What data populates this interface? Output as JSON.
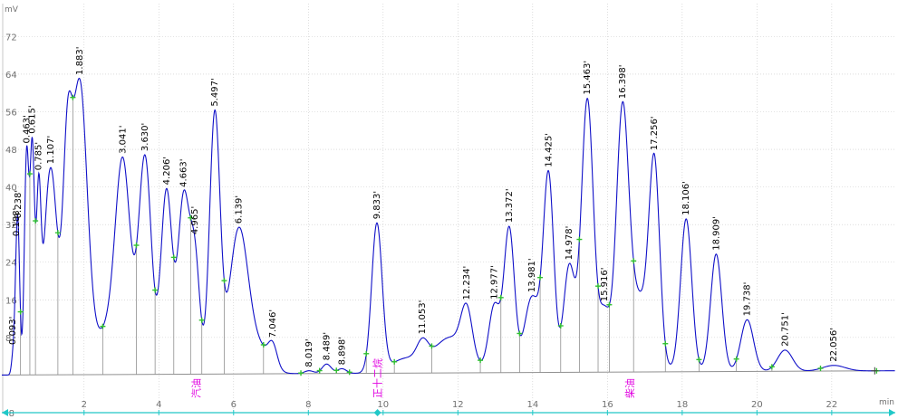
{
  "colors": {
    "trace": "#1010c8",
    "axis_line": "#20c8c8",
    "grid": "#c8c8c8",
    "baseline": "#909090",
    "marker": "#30c030",
    "annotation": "#e000e0",
    "text": "#707070"
  },
  "chart_data": {
    "type": "line",
    "title": "",
    "x_unit": "min",
    "y_unit": "mV",
    "xlim": [
      -0.2,
      23.7
    ],
    "ylim": [
      -8,
      79
    ],
    "xticks": [
      2,
      4,
      6,
      8,
      10,
      12,
      14,
      16,
      18,
      20,
      22
    ],
    "yticks": [
      -8,
      8,
      16,
      24,
      32,
      40,
      48,
      56,
      64,
      72
    ],
    "baseline": [
      [
        -0.2,
        0.0
      ],
      [
        23.3,
        0.9
      ]
    ],
    "peaks": [
      {
        "label": "0.093'",
        "x": 0.093,
        "h": 3.0,
        "w": 0.04
      },
      {
        "label": "0.188'",
        "x": 0.188,
        "h": 14.0,
        "w": 0.05
      },
      {
        "label": "0.238'",
        "x": 0.238,
        "h": 24.0,
        "w": 0.05
      },
      {
        "label": "0.463'",
        "x": 0.463,
        "h": 46.5,
        "w": 0.06
      },
      {
        "label": "0.615'",
        "x": 0.615,
        "h": 47.0,
        "w": 0.06
      },
      {
        "label": "0.785'",
        "x": 0.785,
        "h": 33.0,
        "w": 0.06
      },
      {
        "label": "1.107'",
        "x": 1.107,
        "h": 44.0,
        "w": 0.18
      },
      {
        "label": "",
        "x": 1.55,
        "h": 40.0,
        "w": 0.12
      },
      {
        "label": "1.883'",
        "x": 1.883,
        "h": 61.0,
        "w": 0.2
      },
      {
        "label": "",
        "x": 2.6,
        "h": 9.0,
        "w": 0.35
      },
      {
        "label": "3.041'",
        "x": 3.041,
        "h": 42.0,
        "w": 0.2
      },
      {
        "label": "3.630'",
        "x": 3.63,
        "h": 46.0,
        "w": 0.17
      },
      {
        "label": "4.206'",
        "x": 4.206,
        "h": 39.0,
        "w": 0.15
      },
      {
        "label": "4.663'",
        "x": 4.663,
        "h": 37.0,
        "w": 0.15
      },
      {
        "label": "4.965'",
        "x": 4.965,
        "h": 24.0,
        "w": 0.13
      },
      {
        "label": "5.497'",
        "x": 5.497,
        "h": 55.0,
        "w": 0.14
      },
      {
        "label": "6.139'",
        "x": 6.139,
        "h": 30.5,
        "w": 0.25
      },
      {
        "label": "",
        "x": 6.7,
        "h": 5.0,
        "w": 0.28
      },
      {
        "label": "7.046'",
        "x": 7.046,
        "h": 4.5,
        "w": 0.12
      },
      {
        "label": "8.019'",
        "x": 8.019,
        "h": 0.6,
        "w": 0.12
      },
      {
        "label": "8.489'",
        "x": 8.489,
        "h": 2.0,
        "w": 0.12
      },
      {
        "label": "8.898'",
        "x": 8.898,
        "h": 1.0,
        "w": 0.12
      },
      {
        "label": "9.833'",
        "x": 9.833,
        "h": 31.5,
        "w": 0.14
      },
      {
        "label": "",
        "x": 10.6,
        "h": 3.0,
        "w": 0.4
      },
      {
        "label": "11.053'",
        "x": 11.053,
        "h": 4.0,
        "w": 0.15
      },
      {
        "label": "",
        "x": 11.8,
        "h": 7.5,
        "w": 0.45
      },
      {
        "label": "12.234'",
        "x": 12.234,
        "h": 10.0,
        "w": 0.15
      },
      {
        "label": "12.977'",
        "x": 12.977,
        "h": 14.0,
        "w": 0.15
      },
      {
        "label": "13.372'",
        "x": 13.372,
        "h": 30.5,
        "w": 0.14
      },
      {
        "label": "13.981'",
        "x": 13.981,
        "h": 16.0,
        "w": 0.2
      },
      {
        "label": "14.425'",
        "x": 14.425,
        "h": 41.5,
        "w": 0.14
      },
      {
        "label": "14.978'",
        "x": 14.978,
        "h": 22.5,
        "w": 0.15
      },
      {
        "label": "15.463'",
        "x": 15.463,
        "h": 58.0,
        "w": 0.16
      },
      {
        "label": "15.916'",
        "x": 15.916,
        "h": 12.0,
        "w": 0.15
      },
      {
        "label": "16.398'",
        "x": 16.398,
        "h": 49.0,
        "w": 0.16
      },
      {
        "label": "",
        "x": 16.8,
        "h": 16.0,
        "w": 0.35
      },
      {
        "label": "17.256'",
        "x": 17.256,
        "h": 39.5,
        "w": 0.14
      },
      {
        "label": "18.106'",
        "x": 18.106,
        "h": 32.5,
        "w": 0.15
      },
      {
        "label": "18.909'",
        "x": 18.909,
        "h": 25.0,
        "w": 0.15
      },
      {
        "label": "19.738'",
        "x": 19.738,
        "h": 11.0,
        "w": 0.17
      },
      {
        "label": "20.751'",
        "x": 20.751,
        "h": 4.5,
        "w": 0.2
      },
      {
        "label": "22.056'",
        "x": 22.056,
        "h": 1.2,
        "w": 0.3
      }
    ],
    "markers": [
      0.3,
      0.55,
      0.7,
      1.3,
      1.7,
      2.5,
      3.4,
      3.9,
      4.4,
      4.85,
      5.15,
      5.75,
      6.8,
      7.8,
      8.3,
      8.75,
      9.1,
      9.55,
      10.3,
      11.3,
      12.6,
      13.15,
      13.65,
      14.2,
      14.75,
      15.25,
      15.75,
      16.05,
      16.7,
      17.55,
      18.45,
      19.45,
      20.4,
      21.7,
      23.2
    ],
    "annotations": [
      {
        "text": "汽油",
        "x": 5.0
      },
      {
        "text": "正十二烷",
        "x": 9.85
      },
      {
        "text": "柴油",
        "x": 16.6
      }
    ]
  }
}
